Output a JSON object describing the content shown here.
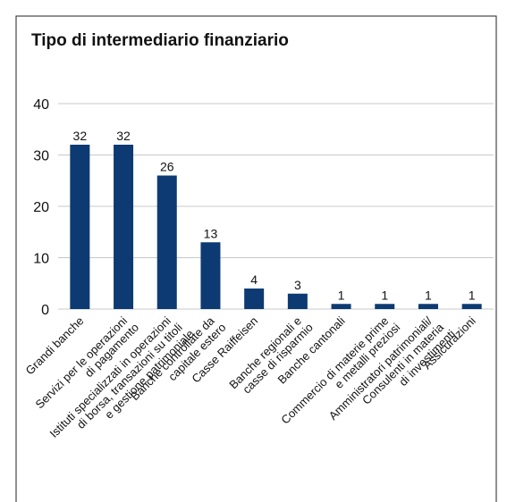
{
  "chart_data": {
    "type": "bar",
    "title": "Tipo di intermediario finanziario",
    "categories": [
      "Grandi banche",
      "Servizi per le operazioni\ndi pagamento",
      "Istituti specializzati in operazioni\ndi borsa, transazioni su titoli\ne gestione patrimoniale",
      "Banche controllate da\ncapitale estero",
      "Casse Raiffeisen",
      "Banche regionali e\ncasse di risparmio",
      "Banche cantonali",
      "Commercio di materie prime\ne metalli preziosi",
      "Amministratori patrimoniali/\nConsulenti in materia\ndi investimenti",
      "Assicurazioni"
    ],
    "values": [
      32,
      32,
      26,
      13,
      4,
      3,
      1,
      1,
      1,
      1
    ],
    "color": "#0d3a72",
    "ylim": [
      0,
      40
    ],
    "yticks": [
      0,
      10,
      20,
      30,
      40
    ],
    "grid": true
  }
}
